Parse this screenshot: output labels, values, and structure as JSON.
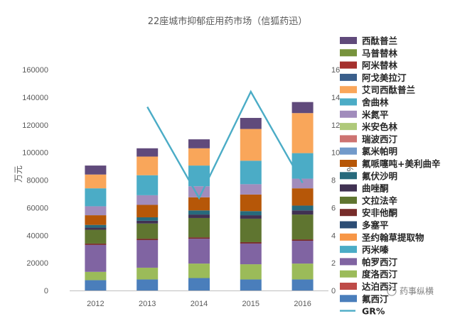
{
  "chart_data": {
    "type": "bar",
    "stacked": true,
    "title": "22座城市抑郁症用药市场（信狐药迅）",
    "categories": [
      "2012",
      "2013",
      "2014",
      "2015",
      "2016"
    ],
    "ylabel_left": "万元",
    "ylabel_right": "%",
    "ylim_left": [
      0,
      160000
    ],
    "yticks_left": [
      "0",
      "20000",
      "40000",
      "60000",
      "80000",
      "100000",
      "120000",
      "140000",
      "160000"
    ],
    "ylim_right": [
      0,
      16
    ],
    "yticks_right": [
      "0",
      "2",
      "4",
      "6",
      "8",
      "10",
      "12",
      "14",
      "16"
    ],
    "grid": false,
    "legend_position": "right",
    "series": [
      {
        "name": "氟西汀",
        "color": "#4a7ebb",
        "values": [
          7500,
          8000,
          9000,
          8000,
          8000
        ]
      },
      {
        "name": "达泊西汀",
        "color": "#be4b48",
        "values": [
          0,
          0,
          0,
          0,
          0
        ]
      },
      {
        "name": "度洛西汀",
        "color": "#9bbb59",
        "values": [
          6000,
          8500,
          10500,
          11000,
          11500
        ]
      },
      {
        "name": "帕罗西汀",
        "color": "#8064a2",
        "values": [
          19500,
          20000,
          18000,
          15000,
          16500
        ]
      },
      {
        "name": "丙米嗪",
        "color": "#4bacc6",
        "values": [
          0,
          0,
          0,
          0,
          0
        ]
      },
      {
        "name": "圣约翰草提取物",
        "color": "#f79646",
        "values": [
          0,
          0,
          0,
          0,
          0
        ]
      },
      {
        "name": "多塞平",
        "color": "#2c4d75",
        "values": [
          0,
          0,
          0,
          0,
          0
        ]
      },
      {
        "name": "安非他酮",
        "color": "#772c2a",
        "values": [
          1000,
          1000,
          1000,
          1000,
          1000
        ]
      },
      {
        "name": "文拉法辛",
        "color": "#5f7530",
        "values": [
          10000,
          11000,
          14000,
          17000,
          18000
        ]
      },
      {
        "name": "曲唑酮",
        "color": "#403152",
        "values": [
          1500,
          2000,
          2500,
          2500,
          3000
        ]
      },
      {
        "name": "氟伏沙明",
        "color": "#276a7c",
        "values": [
          2000,
          2500,
          3000,
          3000,
          3500
        ]
      },
      {
        "name": "氟哌噻吨+美利曲辛",
        "color": "#b65708",
        "values": [
          7000,
          9000,
          9500,
          12000,
          12500
        ]
      },
      {
        "name": "氯米帕明",
        "color": "#729aca",
        "values": [
          0,
          0,
          0,
          0,
          0
        ]
      },
      {
        "name": "瑞波西汀",
        "color": "#cd7371",
        "values": [
          0,
          0,
          0,
          0,
          0
        ]
      },
      {
        "name": "米安色林",
        "color": "#afc97a",
        "values": [
          0,
          0,
          0,
          0,
          0
        ]
      },
      {
        "name": "米氮平",
        "color": "#a18cbc",
        "values": [
          6500,
          7000,
          8000,
          7500,
          7000
        ]
      },
      {
        "name": "舍曲林",
        "color": "#4bacc6",
        "values": [
          13000,
          14500,
          15000,
          17000,
          18500
        ]
      },
      {
        "name": "艾司西酞普兰",
        "color": "#f9a65a",
        "values": [
          10000,
          13500,
          12500,
          23000,
          29000
        ]
      },
      {
        "name": "阿戈美拉汀",
        "color": "#3a5f8b",
        "values": [
          0,
          0,
          0,
          0,
          0
        ]
      },
      {
        "name": "阿米替林",
        "color": "#a5302d",
        "values": [
          0,
          0,
          0,
          0,
          0
        ]
      },
      {
        "name": "马普替林",
        "color": "#77933c",
        "values": [
          0,
          0,
          0,
          0,
          0
        ]
      },
      {
        "name": "西酞普兰",
        "color": "#604a7b",
        "values": [
          6500,
          6000,
          6500,
          8000,
          8000
        ]
      }
    ],
    "line_series": {
      "name": "GR%",
      "color": "#4bacc6",
      "axis": "right",
      "values": [
        null,
        13.3,
        6.7,
        14.4,
        7.8
      ]
    },
    "legend_order": [
      "西酞普兰",
      "马普替林",
      "阿米替林",
      "阿戈美拉汀",
      "艾司西酞普兰",
      "舍曲林",
      "米氮平",
      "米安色林",
      "瑞波西汀",
      "氯米帕明",
      "氟哌噻吨+美利曲辛",
      "氟伏沙明",
      "曲唑酮",
      "文拉法辛",
      "安非他酮",
      "多塞平",
      "圣约翰草提取物",
      "丙米嗪",
      "帕罗西汀",
      "度洛西汀",
      "达泊西汀",
      "氟西汀",
      "GR%"
    ]
  },
  "watermark": "药事纵横"
}
